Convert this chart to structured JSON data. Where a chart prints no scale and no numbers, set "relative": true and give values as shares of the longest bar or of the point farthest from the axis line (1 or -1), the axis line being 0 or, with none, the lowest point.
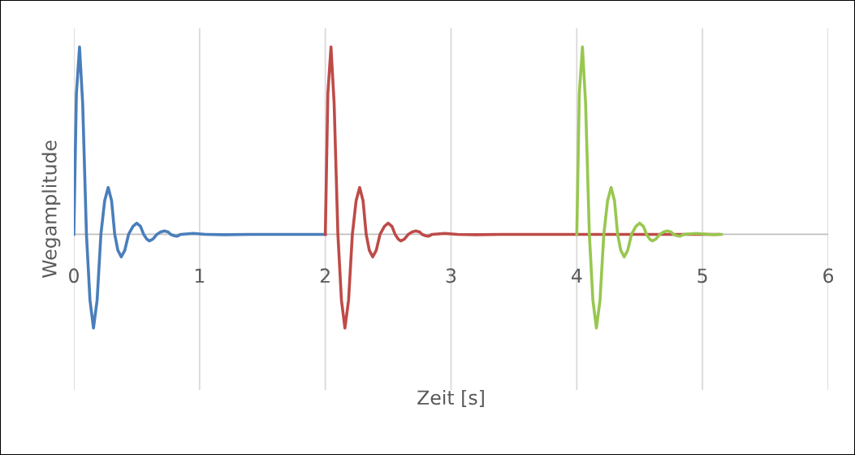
{
  "chart_data": {
    "type": "line",
    "relative": true,
    "xlabel": "Zeit [s]",
    "ylabel": "Wegamplitude",
    "xlim": [
      0,
      6
    ],
    "xticks": [
      0,
      1,
      2,
      3,
      4,
      5,
      6
    ],
    "grid": "x",
    "marker": "none",
    "line_style": "solid",
    "series": [
      {
        "color": "#4a7ebb",
        "x": [
          0,
          0.02,
          0.045,
          0.07,
          0.1,
          0.128,
          0.156,
          0.185,
          0.215,
          0.245,
          0.273,
          0.3,
          0.325,
          0.35,
          0.377,
          0.405,
          0.435,
          0.47,
          0.5,
          0.53,
          0.555,
          0.58,
          0.6,
          0.63,
          0.66,
          0.69,
          0.72,
          0.75,
          0.77,
          0.8,
          0.82,
          0.85,
          0.95,
          1.05,
          1.2,
          1.4,
          2.0
        ],
        "values": [
          0,
          0.75,
          1,
          0.7,
          0,
          -0.35,
          -0.5,
          -0.35,
          0,
          0.18,
          0.25,
          0.18,
          0,
          -0.085,
          -0.12,
          -0.085,
          0,
          0.043,
          0.06,
          0.043,
          0,
          -0.025,
          -0.035,
          -0.025,
          0,
          0.013,
          0.018,
          0.013,
          0,
          -0.008,
          -0.01,
          0,
          0.005,
          0,
          -0.002,
          0,
          0
        ]
      },
      {
        "color": "#be4b48",
        "x": [
          2,
          2.02,
          2.045,
          2.07,
          2.1,
          2.128,
          2.156,
          2.185,
          2.215,
          2.245,
          2.273,
          2.3,
          2.325,
          2.35,
          2.377,
          2.405,
          2.435,
          2.47,
          2.5,
          2.53,
          2.555,
          2.58,
          2.6,
          2.63,
          2.66,
          2.69,
          2.72,
          2.75,
          2.77,
          2.8,
          2.82,
          2.85,
          2.95,
          3.05,
          3.2,
          3.4,
          5.13
        ],
        "values": [
          0,
          0.75,
          1,
          0.7,
          0,
          -0.35,
          -0.5,
          -0.35,
          0,
          0.18,
          0.25,
          0.18,
          0,
          -0.085,
          -0.12,
          -0.085,
          0,
          0.043,
          0.06,
          0.043,
          0,
          -0.025,
          -0.035,
          -0.025,
          0,
          0.013,
          0.018,
          0.013,
          0,
          -0.008,
          -0.01,
          0,
          0.005,
          0,
          -0.002,
          0,
          0
        ]
      },
      {
        "color": "#98c74f",
        "x": [
          4,
          4.02,
          4.045,
          4.07,
          4.1,
          4.128,
          4.156,
          4.185,
          4.215,
          4.245,
          4.273,
          4.3,
          4.325,
          4.35,
          4.377,
          4.405,
          4.435,
          4.47,
          4.5,
          4.53,
          4.555,
          4.58,
          4.6,
          4.63,
          4.66,
          4.69,
          4.72,
          4.75,
          4.77,
          4.8,
          4.82,
          4.85,
          4.95,
          5.05,
          5.1,
          5.12,
          5.15
        ],
        "values": [
          0,
          0.75,
          1,
          0.7,
          0,
          -0.35,
          -0.5,
          -0.35,
          0,
          0.18,
          0.25,
          0.18,
          0,
          -0.085,
          -0.12,
          -0.085,
          0,
          0.043,
          0.06,
          0.043,
          0,
          -0.025,
          -0.035,
          -0.025,
          0,
          0.013,
          0.018,
          0.013,
          0,
          -0.008,
          -0.01,
          0,
          0.005,
          0,
          -0.002,
          0,
          0
        ]
      }
    ]
  }
}
